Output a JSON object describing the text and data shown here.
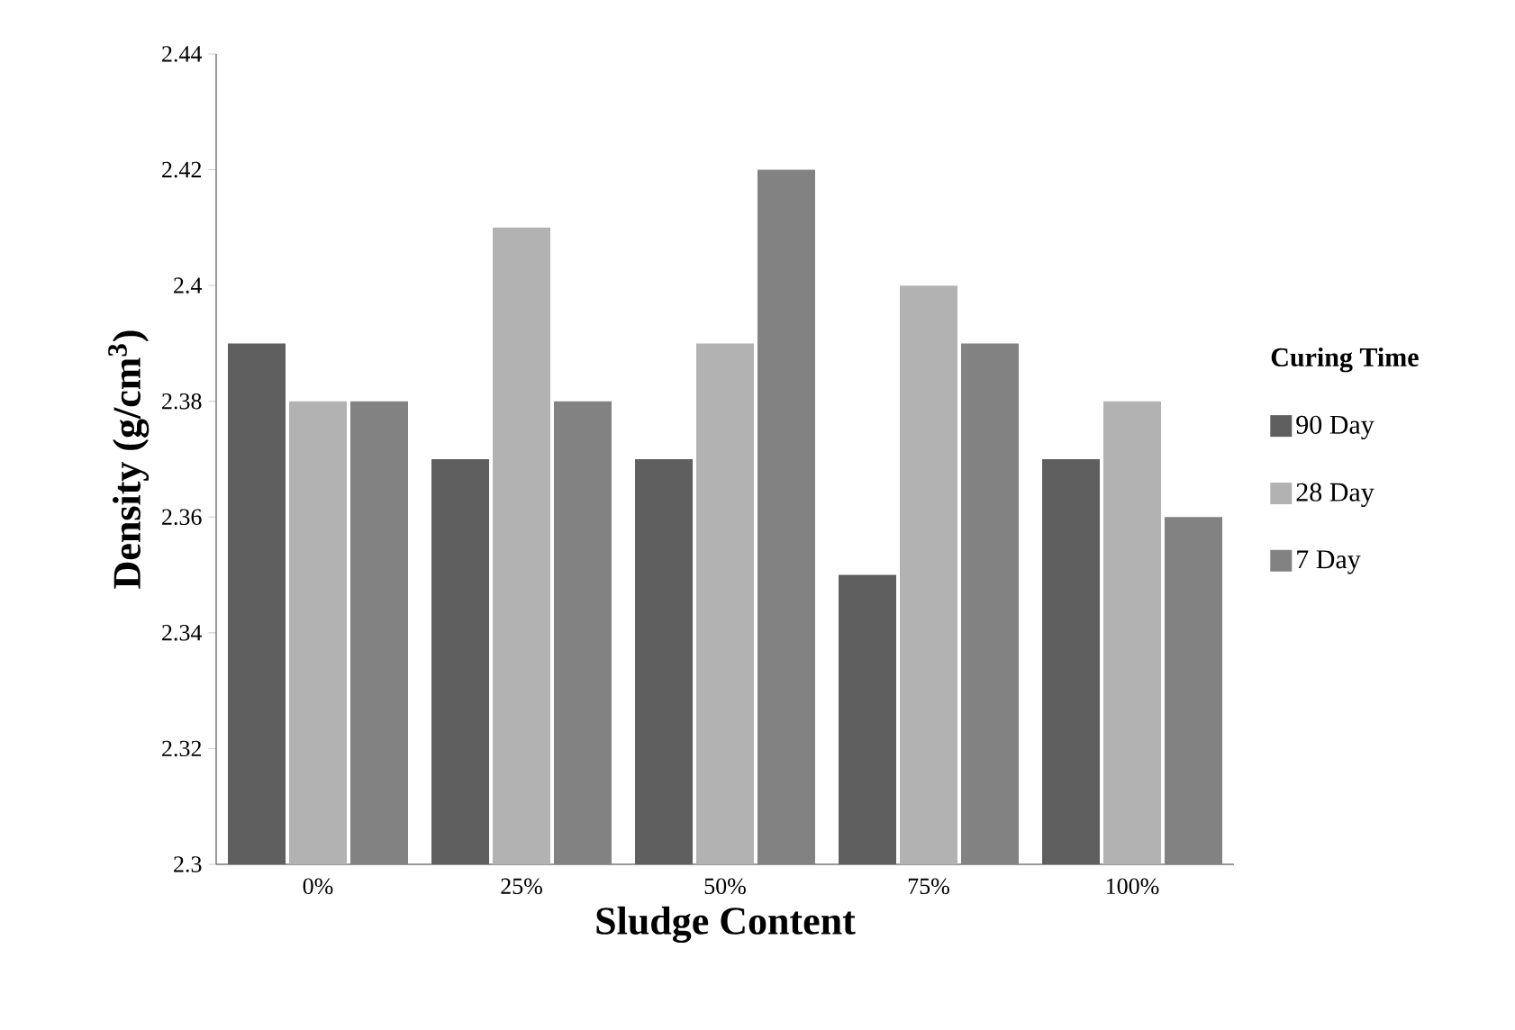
{
  "chart_data": {
    "type": "bar",
    "xlabel": "Sludge Content",
    "ylabel": "Density (g/cm$^{3}$)",
    "legend_title": "Curing Time",
    "legend": "right",
    "categories": [
      "0%",
      "25%",
      "50%",
      "75%",
      "100%"
    ],
    "series": [
      {
        "name": "90 Day",
        "color": "#5f5f5f",
        "values": [
          2.39,
          2.37,
          2.37,
          2.35,
          2.37
        ]
      },
      {
        "name": "28 Day",
        "color": "#b2b2b2",
        "values": [
          2.38,
          2.41,
          2.39,
          2.4,
          2.38
        ]
      },
      {
        "name": "7 Day",
        "color": "#828282",
        "values": [
          2.38,
          2.38,
          2.42,
          2.39,
          2.36
        ]
      }
    ],
    "ylim": [
      2.3,
      2.44
    ],
    "yticks": [
      2.3,
      2.32,
      2.34,
      2.36,
      2.38,
      2.4,
      2.42,
      2.44
    ],
    "grid": false
  }
}
